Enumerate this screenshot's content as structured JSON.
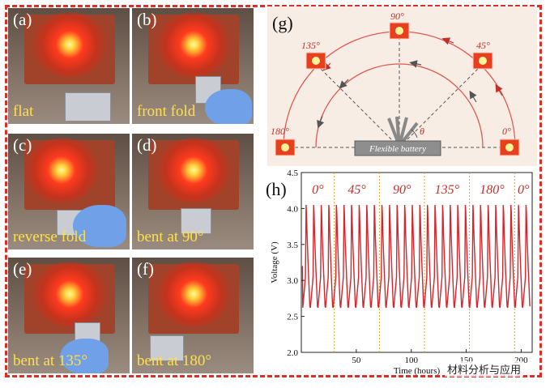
{
  "photos": [
    {
      "tag": "(a)",
      "caption": "flat"
    },
    {
      "tag": "(b)",
      "caption": "front fold"
    },
    {
      "tag": "(c)",
      "caption": "reverse fold"
    },
    {
      "tag": "(d)",
      "caption": "bent at 90°"
    },
    {
      "tag": "(e)",
      "caption": "bent at 135°"
    },
    {
      "tag": "(f)",
      "caption": "bent at 180°"
    }
  ],
  "panel_g": {
    "tag": "(g)",
    "angles": [
      "0°",
      "45°",
      "90°",
      "135°",
      "180°"
    ],
    "theta": "θ",
    "battery_label": "Flexible battery"
  },
  "panel_h": {
    "tag": "(h)",
    "segments": [
      "0°",
      "45°",
      "90°",
      "135°",
      "180°",
      "0°"
    ]
  },
  "chart_data": {
    "type": "line",
    "xlabel": "Time (hours)",
    "ylabel": "Voltage (V)",
    "xlim": [
      0,
      210
    ],
    "ylim": [
      2.0,
      4.5
    ],
    "xticks": [
      50,
      100,
      150,
      200
    ],
    "yticks": [
      2.0,
      2.5,
      3.0,
      3.5,
      4.0,
      4.5
    ],
    "dividers_x": [
      30,
      71,
      112,
      153,
      194
    ],
    "series": [
      {
        "color": "#d6252b",
        "cycle_period_hours": 6.9,
        "max_voltage": 4.05,
        "min_voltage": 2.62,
        "cycles": 30
      }
    ]
  },
  "watermark": "材料分析与应用",
  "colors": {
    "accent": "#d9302a",
    "curve": "#d6252b",
    "divider": "#e0a21a"
  }
}
